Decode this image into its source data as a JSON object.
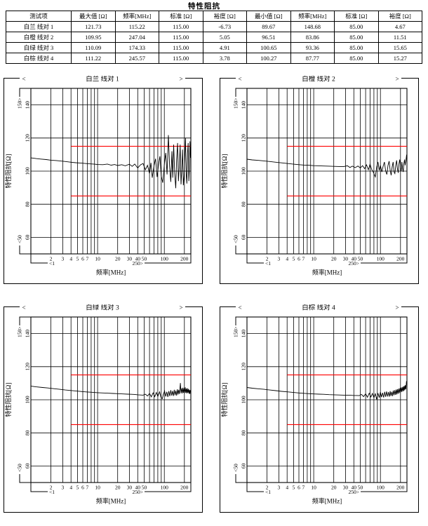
{
  "page_title": "特性阻抗",
  "table": {
    "headers": [
      "测试项",
      "最大值 [Ω]",
      "频率[MHz]",
      "标准 [Ω]",
      "裕度 [Ω]",
      "最小值 [Ω]",
      "频率[MHz]",
      "标准 [Ω]",
      "裕度 [Ω]"
    ],
    "rows": [
      [
        "白兰 线对 1",
        "121.73",
        "115.22",
        "115.00",
        "-6.73",
        "89.67",
        "148.68",
        "85.00",
        "4.67"
      ],
      [
        "白橙 线对 2",
        "109.95",
        "247.04",
        "115.00",
        "5.05",
        "96.51",
        "83.86",
        "85.00",
        "11.51"
      ],
      [
        "白绿 线对 3",
        "110.09",
        "174.33",
        "115.00",
        "4.91",
        "100.65",
        "93.36",
        "85.00",
        "15.65"
      ],
      [
        "白棕 线对 4",
        "111.22",
        "245.57",
        "115.00",
        "3.78",
        "100.27",
        "87.77",
        "85.00",
        "15.27"
      ]
    ]
  },
  "chart_data": {
    "type": "line",
    "xscale": "log",
    "xlabel": "频率[MHz]",
    "ylabel": "特性阻抗[Ω]",
    "xlim": [
      1,
      250
    ],
    "ylim": [
      50,
      150
    ],
    "x_tick_labels": [
      2,
      3,
      4,
      5,
      6,
      7,
      10,
      20,
      30,
      40,
      50,
      100,
      200
    ],
    "x_gridlines": [
      2,
      3,
      4,
      5,
      6,
      7,
      8,
      9,
      10,
      20,
      30,
      40,
      50,
      60,
      70,
      80,
      90,
      100,
      200
    ],
    "y_ticks": [
      60,
      80,
      100,
      120,
      140
    ],
    "axis_range_labels": {
      "x_min": "<1",
      "x_max": "250>",
      "y_min": "<50",
      "y_max": "150>"
    },
    "limit_lines": [
      {
        "value": 115,
        "x_from": 4,
        "x_to": 250,
        "color": "#ff0000"
      },
      {
        "value": 85,
        "x_from": 4,
        "x_to": 250,
        "color": "#ff0000"
      }
    ],
    "grid": true,
    "colors": {
      "curve": "#000000",
      "grid": "#000000",
      "frame": "#000000",
      "limit": "#ff0000"
    },
    "charts": [
      {
        "title": "白兰 线对 1",
        "points": [
          [
            1,
            108
          ],
          [
            1.2,
            107.6
          ],
          [
            1.4,
            107.3
          ],
          [
            1.7,
            107
          ],
          [
            2,
            106.6
          ],
          [
            2.4,
            106.4
          ],
          [
            2.8,
            106.1
          ],
          [
            3.3,
            105.8
          ],
          [
            4,
            105.4
          ],
          [
            4.7,
            105.1
          ],
          [
            5.5,
            104.9
          ],
          [
            6.5,
            104.6
          ],
          [
            7.5,
            104.4
          ],
          [
            9,
            104.2
          ],
          [
            10,
            104
          ],
          [
            12,
            103.9
          ],
          [
            14,
            104.3
          ],
          [
            16,
            103.6
          ],
          [
            18,
            104
          ],
          [
            20,
            103.4
          ],
          [
            23,
            103.9
          ],
          [
            26,
            103.2
          ],
          [
            30,
            104.2
          ],
          [
            33,
            102.9
          ],
          [
            36,
            104.3
          ],
          [
            40,
            101.9
          ],
          [
            44,
            103.8
          ],
          [
            48,
            104.6
          ],
          [
            52,
            100.8
          ],
          [
            56,
            103.5
          ],
          [
            60,
            98.5
          ],
          [
            63,
            105
          ],
          [
            66,
            96
          ],
          [
            70,
            103
          ],
          [
            74,
            107.5
          ],
          [
            78,
            96.5
          ],
          [
            82,
            104
          ],
          [
            86,
            109
          ],
          [
            90,
            97
          ],
          [
            95,
            93
          ],
          [
            100,
            104
          ],
          [
            105,
            111
          ],
          [
            110,
            98
          ],
          [
            115.22,
            121.73
          ],
          [
            120,
            103
          ],
          [
            125,
            93.5
          ],
          [
            130,
            112
          ],
          [
            134,
            96
          ],
          [
            138,
            116
          ],
          [
            143,
            99
          ],
          [
            148.68,
            89.67
          ],
          [
            153,
            107
          ],
          [
            158,
            117
          ],
          [
            163,
            94
          ],
          [
            168,
            103
          ],
          [
            173,
            116
          ],
          [
            178,
            92
          ],
          [
            183,
            101
          ],
          [
            188,
            113
          ],
          [
            193,
            91.5
          ],
          [
            198,
            97
          ],
          [
            203,
            109
          ],
          [
            208,
            120
          ],
          [
            213,
            98
          ],
          [
            218,
            92.5
          ],
          [
            223,
            111
          ],
          [
            228,
            117
          ],
          [
            233,
            94
          ],
          [
            238,
            101
          ],
          [
            243,
            118
          ],
          [
            247,
            108
          ],
          [
            250,
            115
          ]
        ]
      },
      {
        "title": "白橙 线对 2",
        "points": [
          [
            1,
            107.2
          ],
          [
            1.2,
            106.8
          ],
          [
            1.5,
            106.5
          ],
          [
            1.8,
            106.2
          ],
          [
            2.2,
            105.8
          ],
          [
            2.7,
            105.4
          ],
          [
            3.3,
            105
          ],
          [
            4,
            104.6
          ],
          [
            5,
            104.2
          ],
          [
            6,
            103.9
          ],
          [
            7,
            103.7
          ],
          [
            8.5,
            103.5
          ],
          [
            10,
            103.3
          ],
          [
            12,
            103.2
          ],
          [
            14,
            103.1
          ],
          [
            17,
            103
          ],
          [
            20,
            102.9
          ],
          [
            24,
            102.8
          ],
          [
            28,
            102.7
          ],
          [
            32,
            103.2
          ],
          [
            35,
            102.2
          ],
          [
            38,
            103
          ],
          [
            42,
            102.1
          ],
          [
            46,
            103.1
          ],
          [
            50,
            101.9
          ],
          [
            54,
            103.3
          ],
          [
            58,
            101.5
          ],
          [
            62,
            103.8
          ],
          [
            66,
            100.8
          ],
          [
            70,
            104.2
          ],
          [
            74,
            101
          ],
          [
            78,
            99.5
          ],
          [
            83.86,
            96.51
          ],
          [
            88,
            102.5
          ],
          [
            92,
            105.5
          ],
          [
            96,
            100.5
          ],
          [
            100,
            103.5
          ],
          [
            105,
            99.5
          ],
          [
            110,
            103
          ],
          [
            115,
            105.5
          ],
          [
            120,
            100
          ],
          [
            125,
            98
          ],
          [
            130,
            103.5
          ],
          [
            135,
            106
          ],
          [
            140,
            100.5
          ],
          [
            145,
            97.5
          ],
          [
            150,
            102.5
          ],
          [
            155,
            105.5
          ],
          [
            160,
            99.5
          ],
          [
            165,
            98.5
          ],
          [
            170,
            103.5
          ],
          [
            175,
            106.5
          ],
          [
            180,
            101.5
          ],
          [
            185,
            99
          ],
          [
            190,
            104.5
          ],
          [
            195,
            107
          ],
          [
            200,
            102.5
          ],
          [
            205,
            100
          ],
          [
            210,
            105.5
          ],
          [
            215,
            101.5
          ],
          [
            220,
            99.5
          ],
          [
            225,
            104.5
          ],
          [
            230,
            107
          ],
          [
            235,
            103.5
          ],
          [
            240,
            106
          ],
          [
            244,
            108
          ],
          [
            247.04,
            109.95
          ],
          [
            250,
            104.5
          ]
        ]
      },
      {
        "title": "白绿 线对 3",
        "points": [
          [
            1,
            108.2
          ],
          [
            1.2,
            107.8
          ],
          [
            1.5,
            107.4
          ],
          [
            1.8,
            107.1
          ],
          [
            2.2,
            106.7
          ],
          [
            2.7,
            106.3
          ],
          [
            3.3,
            105.9
          ],
          [
            4,
            105.6
          ],
          [
            5,
            105.2
          ],
          [
            6,
            104.9
          ],
          [
            7,
            104.7
          ],
          [
            8.5,
            104.5
          ],
          [
            10,
            104.3
          ],
          [
            12,
            104.1
          ],
          [
            14,
            104
          ],
          [
            17,
            103.8
          ],
          [
            20,
            103.7
          ],
          [
            24,
            103.5
          ],
          [
            28,
            103.4
          ],
          [
            32,
            103.3
          ],
          [
            36,
            103.2
          ],
          [
            40,
            103
          ],
          [
            44,
            102.9
          ],
          [
            48,
            102.8
          ],
          [
            52,
            103.4
          ],
          [
            56,
            102.3
          ],
          [
            60,
            103.8
          ],
          [
            64,
            101.8
          ],
          [
            68,
            104.2
          ],
          [
            72,
            101.9
          ],
          [
            76,
            104.4
          ],
          [
            80,
            102
          ],
          [
            85,
            104.8
          ],
          [
            89,
            101.5
          ],
          [
            93.36,
            100.65
          ],
          [
            97,
            103.5
          ],
          [
            101,
            105.3
          ],
          [
            105,
            102
          ],
          [
            109,
            104.8
          ],
          [
            113,
            101.7
          ],
          [
            117,
            105.2
          ],
          [
            121,
            102.2
          ],
          [
            125,
            105.8
          ],
          [
            129,
            102.5
          ],
          [
            133,
            105.3
          ],
          [
            137,
            102.3
          ],
          [
            141,
            106
          ],
          [
            145,
            102.8
          ],
          [
            149,
            105.5
          ],
          [
            153,
            102.5
          ],
          [
            157,
            106.3
          ],
          [
            161,
            103.2
          ],
          [
            165,
            106
          ],
          [
            169,
            103.5
          ],
          [
            174.33,
            110.09
          ],
          [
            178,
            104
          ],
          [
            182,
            107
          ],
          [
            186,
            103.8
          ],
          [
            190,
            107.3
          ],
          [
            194,
            104.2
          ],
          [
            198,
            107
          ],
          [
            202,
            104
          ],
          [
            206,
            107.5
          ],
          [
            210,
            104.3
          ],
          [
            214,
            106.8
          ],
          [
            218,
            103.8
          ],
          [
            222,
            107
          ],
          [
            226,
            104.2
          ],
          [
            230,
            106.5
          ],
          [
            234,
            103.7
          ],
          [
            238,
            106
          ],
          [
            242,
            103.5
          ],
          [
            246,
            105.8
          ],
          [
            250,
            104.5
          ]
        ]
      },
      {
        "title": "白棕 线对 4",
        "points": [
          [
            1,
            107.4
          ],
          [
            1.2,
            107
          ],
          [
            1.5,
            106.6
          ],
          [
            1.8,
            106.3
          ],
          [
            2.2,
            105.9
          ],
          [
            2.7,
            105.5
          ],
          [
            3.3,
            105.1
          ],
          [
            4,
            104.8
          ],
          [
            5,
            104.4
          ],
          [
            6,
            104.1
          ],
          [
            7,
            103.9
          ],
          [
            8.5,
            103.7
          ],
          [
            10,
            103.5
          ],
          [
            12,
            103.4
          ],
          [
            14,
            103.3
          ],
          [
            17,
            103.1
          ],
          [
            20,
            103
          ],
          [
            24,
            102.9
          ],
          [
            28,
            102.8
          ],
          [
            32,
            102.8
          ],
          [
            36,
            102.7
          ],
          [
            40,
            102.6
          ],
          [
            44,
            102.6
          ],
          [
            48,
            102.5
          ],
          [
            52,
            103.2
          ],
          [
            56,
            101.9
          ],
          [
            60,
            103.6
          ],
          [
            64,
            101.5
          ],
          [
            68,
            104
          ],
          [
            72,
            101.7
          ],
          [
            76,
            103.8
          ],
          [
            80,
            101.2
          ],
          [
            84,
            103.6
          ],
          [
            87.77,
            100.27
          ],
          [
            92,
            104
          ],
          [
            96,
            101.3
          ],
          [
            100,
            104.6
          ],
          [
            104,
            101.6
          ],
          [
            108,
            104.2
          ],
          [
            112,
            101.4
          ],
          [
            116,
            104.8
          ],
          [
            120,
            101.8
          ],
          [
            124,
            105
          ],
          [
            128,
            102
          ],
          [
            132,
            104.6
          ],
          [
            136,
            101.9
          ],
          [
            140,
            105.2
          ],
          [
            144,
            102.3
          ],
          [
            148,
            104.8
          ],
          [
            152,
            102.2
          ],
          [
            156,
            105.6
          ],
          [
            160,
            102.8
          ],
          [
            164,
            105.8
          ],
          [
            168,
            103
          ],
          [
            172,
            106.2
          ],
          [
            176,
            103.2
          ],
          [
            180,
            106.4
          ],
          [
            184,
            103.6
          ],
          [
            188,
            106.8
          ],
          [
            192,
            104
          ],
          [
            196,
            107
          ],
          [
            200,
            104.4
          ],
          [
            204,
            107.4
          ],
          [
            208,
            104.8
          ],
          [
            212,
            107.6
          ],
          [
            216,
            105
          ],
          [
            220,
            108
          ],
          [
            224,
            105.4
          ],
          [
            228,
            108.4
          ],
          [
            232,
            105.8
          ],
          [
            236,
            108.8
          ],
          [
            240,
            106.4
          ],
          [
            244,
            109.2
          ],
          [
            245.57,
            111.22
          ],
          [
            250,
            109.5
          ]
        ]
      }
    ]
  }
}
